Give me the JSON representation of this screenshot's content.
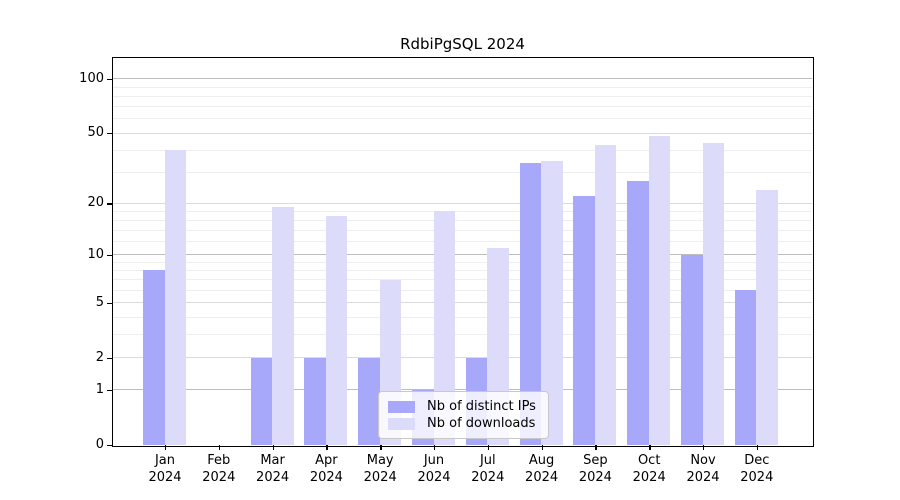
{
  "title": "RdbiPgSQL 2024",
  "legend": {
    "items": [
      {
        "label": "Nb of distinct IPs"
      },
      {
        "label": "Nb of downloads"
      }
    ]
  },
  "chart_data": {
    "type": "bar",
    "title": "RdbiPgSQL 2024",
    "categories": [
      "Jan",
      "Feb",
      "Mar",
      "Apr",
      "May",
      "Jun",
      "Jul",
      "Aug",
      "Sep",
      "Oct",
      "Nov",
      "Dec"
    ],
    "category_year": "2024",
    "series": [
      {
        "name": "Nb of distinct IPs",
        "color": "#a8a8fa",
        "values": [
          8,
          0,
          2,
          2,
          2,
          1,
          2,
          34,
          22,
          27,
          10,
          6
        ]
      },
      {
        "name": "Nb of downloads",
        "color": "#dcdcfa",
        "values": [
          40,
          0,
          19,
          17,
          7,
          18,
          11,
          35,
          43,
          48,
          44,
          24
        ]
      }
    ],
    "y_scale": "log10(1+x)",
    "y_ticks": [
      0,
      1,
      2,
      5,
      10,
      20,
      50,
      100
    ],
    "y_decade_ticks": [
      1,
      10,
      100
    ],
    "y_minor_gridlines": [
      3,
      4,
      6,
      7,
      8,
      9,
      12,
      14,
      16,
      18,
      30,
      40,
      60,
      70,
      80,
      90
    ],
    "ylim": [
      0,
      131
    ],
    "grid": true,
    "legend_position": "bottom-center",
    "background_color": "#ffffff",
    "axis_color": "#000000"
  }
}
